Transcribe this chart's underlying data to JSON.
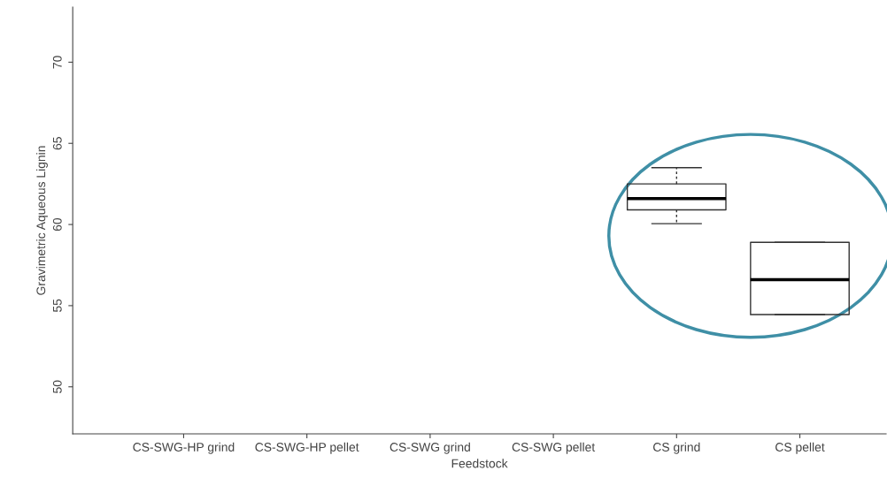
{
  "chart_data": {
    "type": "box",
    "xlabel": "Feedstock",
    "ylabel": "Gravimetric Aqueous Lignin",
    "categories": [
      "CS-SWG-HP grind",
      "CS-SWG-HP pellet",
      "CS-SWG grind",
      "CS-SWG pellet",
      "CS grind",
      "CS pellet"
    ],
    "boxes": [
      null,
      null,
      null,
      null,
      {
        "low": 60.05,
        "q1": 60.9,
        "median": 61.6,
        "q3": 62.5,
        "high": 63.5
      },
      {
        "low": 54.45,
        "q1": 54.45,
        "median": 56.6,
        "q3": 58.9,
        "high": 58.9
      }
    ],
    "ylim": [
      47.1,
      73.4
    ],
    "yticks": [
      50,
      55,
      60,
      65,
      70
    ],
    "grid": false
  }
}
